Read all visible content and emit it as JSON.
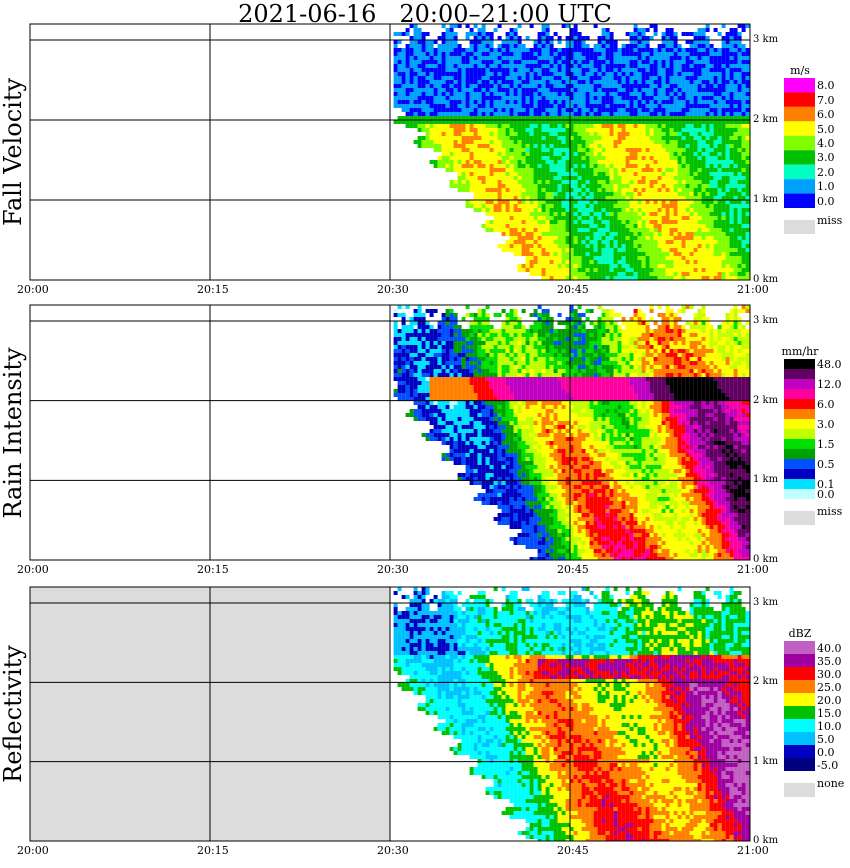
{
  "title": "2021-06-16   20:00–21:00 UTC",
  "chart_data": [
    {
      "type": "heatmap",
      "ylabel": "Fall Velocity",
      "unit": "m/s",
      "x_ticks": [
        "20:00",
        "20:15",
        "20:30",
        "20:45",
        "21:00"
      ],
      "height_ticks": [
        "0 km",
        "1 km",
        "2 km",
        "3 km"
      ],
      "legend": [
        {
          "label": "8.0",
          "color": "#ff00ff"
        },
        {
          "label": "7.0",
          "color": "#ff0000"
        },
        {
          "label": "6.0",
          "color": "#ff8000"
        },
        {
          "label": "5.0",
          "color": "#ffff00"
        },
        {
          "label": "4.0",
          "color": "#80ff00"
        },
        {
          "label": "3.0",
          "color": "#00c000"
        },
        {
          "label": "2.0",
          "color": "#00ffc0"
        },
        {
          "label": "1.0",
          "color": "#00a0ff"
        },
        {
          "label": "0.0",
          "color": "#0000ff"
        }
      ],
      "missing_label": "miss"
    },
    {
      "type": "heatmap",
      "ylabel": "Rain Intensity",
      "unit": "mm/hr",
      "x_ticks": [
        "20:00",
        "20:15",
        "20:30",
        "20:45",
        "21:00"
      ],
      "height_ticks": [
        "0 km",
        "1 km",
        "2 km",
        "3 km"
      ],
      "legend": [
        {
          "label": "48.0",
          "color": "#000000"
        },
        {
          "label": "",
          "color": "#600060"
        },
        {
          "label": "12.0",
          "color": "#c000c0"
        },
        {
          "label": "",
          "color": "#ff00a0"
        },
        {
          "label": "6.0",
          "color": "#ff0000"
        },
        {
          "label": "",
          "color": "#ff8000"
        },
        {
          "label": "3.0",
          "color": "#ffff00"
        },
        {
          "label": "",
          "color": "#c0ff00"
        },
        {
          "label": "1.5",
          "color": "#00e000"
        },
        {
          "label": "",
          "color": "#00a000"
        },
        {
          "label": "0.5",
          "color": "#0050ff"
        },
        {
          "label": "",
          "color": "#0000c0"
        },
        {
          "label": "0.1",
          "color": "#00e0ff"
        },
        {
          "label": "0.0",
          "color": "#c0ffff"
        }
      ],
      "missing_label": "miss"
    },
    {
      "type": "heatmap",
      "ylabel": "Reflectivity",
      "unit": "dBZ",
      "x_ticks": [
        "20:00",
        "20:15",
        "20:30",
        "20:45",
        "21:00"
      ],
      "height_ticks": [
        "0 km",
        "1 km",
        "2 km",
        "3 km"
      ],
      "legend": [
        {
          "label": "40.0",
          "color": "#c060c0"
        },
        {
          "label": "35.0",
          "color": "#a000a0"
        },
        {
          "label": "30.0",
          "color": "#ff0000"
        },
        {
          "label": "25.0",
          "color": "#ff8000"
        },
        {
          "label": "20.0",
          "color": "#ffff00"
        },
        {
          "label": "15.0",
          "color": "#00c000"
        },
        {
          "label": "10.0",
          "color": "#00ffff"
        },
        {
          "label": "5.0",
          "color": "#00c0ff"
        },
        {
          "label": "0.0",
          "color": "#0000c0"
        },
        {
          "label": "-5.0",
          "color": "#000080"
        }
      ],
      "missing_label": "none"
    }
  ],
  "colors": {
    "missing": "#dcdcdc",
    "background": "#ffffff"
  }
}
